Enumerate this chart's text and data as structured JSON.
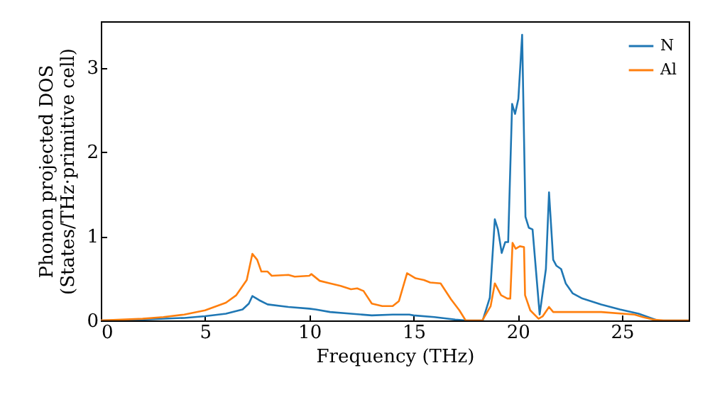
{
  "chart_data": {
    "type": "line",
    "xlabel": "Frequency (THz)",
    "ylabel": "Phonon projected DOS\n(States/THz·primitive cell)",
    "xlim": [
      0,
      28.2
    ],
    "ylim": [
      0,
      3.55
    ],
    "xticks": [
      0,
      5,
      10,
      15,
      20,
      25
    ],
    "yticks": [
      0,
      1,
      2,
      3
    ],
    "grid": false,
    "legend": "top right",
    "marker": "none",
    "line_style": "solid",
    "series": [
      {
        "name": "N",
        "color": "#1f77b4",
        "x": [
          0,
          2,
          4,
          5,
          6,
          6.8,
          7.1,
          7.27,
          7.6,
          8,
          9,
          10,
          10.3,
          11,
          12,
          13,
          14,
          14.8,
          15,
          16,
          17,
          17.5,
          18.32,
          18.66,
          18.9,
          19.05,
          19.23,
          19.4,
          19.54,
          19.73,
          19.87,
          20.03,
          20.21,
          20.37,
          20.53,
          20.71,
          21.05,
          21.35,
          21.5,
          21.7,
          21.85,
          22.08,
          22.3,
          22.64,
          23.1,
          24,
          24.9,
          25.8,
          26.7,
          28.2
        ],
        "values": [
          0,
          0.01,
          0.03,
          0.05,
          0.08,
          0.13,
          0.2,
          0.29,
          0.24,
          0.19,
          0.16,
          0.14,
          0.13,
          0.1,
          0.08,
          0.06,
          0.07,
          0.07,
          0.06,
          0.04,
          0.01,
          0,
          0,
          0.27,
          1.2,
          1.08,
          0.8,
          0.93,
          0.93,
          2.57,
          2.45,
          2.63,
          3.39,
          1.23,
          1.1,
          1.08,
          0.07,
          0.61,
          1.52,
          0.72,
          0.65,
          0.61,
          0.44,
          0.32,
          0.26,
          0.19,
          0.13,
          0.08,
          0,
          0
        ]
      },
      {
        "name": "Al",
        "color": "#ff7f0e",
        "x": [
          0,
          2,
          3,
          4,
          5,
          6,
          6.5,
          7,
          7.27,
          7.5,
          7.7,
          8,
          8.2,
          9,
          9.3,
          10,
          10.1,
          10.5,
          11,
          11.5,
          12,
          12.3,
          12.6,
          13,
          13.5,
          14,
          14.3,
          14.69,
          15.1,
          15.5,
          15.8,
          16.3,
          16.8,
          17.2,
          17.5,
          18.3,
          18.7,
          18.9,
          19.2,
          19.5,
          19.64,
          19.75,
          19.9,
          20.1,
          20.3,
          20.35,
          20.6,
          21,
          21.2,
          21.5,
          21.7,
          22,
          24,
          25.6,
          26,
          26.5,
          27,
          28.2
        ],
        "values": [
          0,
          0.02,
          0.04,
          0.07,
          0.12,
          0.21,
          0.3,
          0.48,
          0.79,
          0.72,
          0.58,
          0.58,
          0.53,
          0.54,
          0.52,
          0.53,
          0.55,
          0.47,
          0.44,
          0.41,
          0.37,
          0.38,
          0.35,
          0.2,
          0.17,
          0.17,
          0.23,
          0.56,
          0.5,
          0.48,
          0.45,
          0.44,
          0.25,
          0.12,
          0,
          0,
          0.17,
          0.44,
          0.3,
          0.26,
          0.26,
          0.92,
          0.85,
          0.88,
          0.87,
          0.3,
          0.12,
          0.02,
          0.05,
          0.16,
          0.1,
          0.1,
          0.1,
          0.07,
          0.04,
          0.01,
          0,
          0
        ]
      }
    ]
  }
}
